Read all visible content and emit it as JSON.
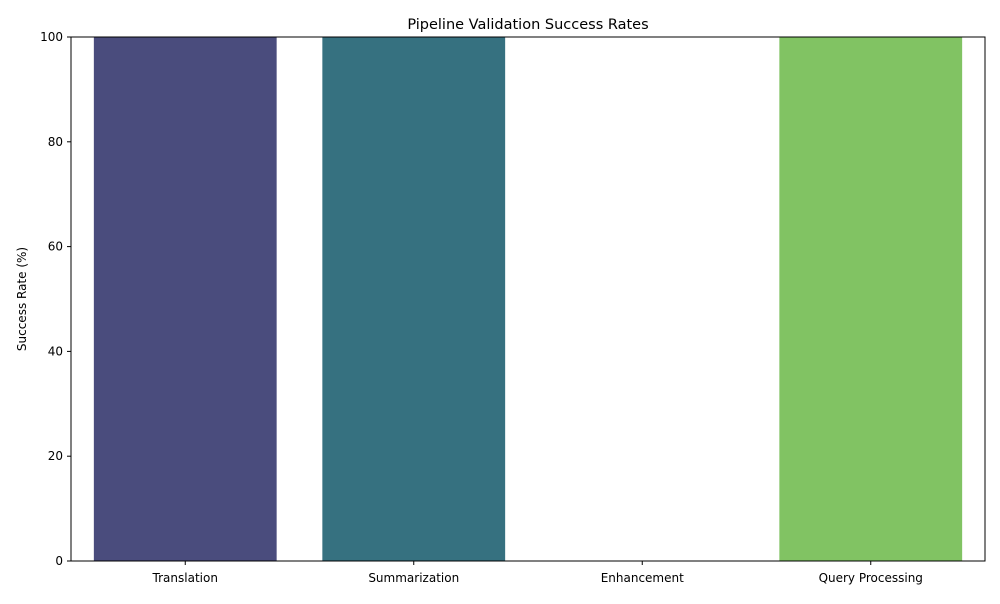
{
  "chart_data": {
    "type": "bar",
    "title": "Pipeline Validation Success Rates",
    "xlabel": "",
    "ylabel": "Success Rate (%)",
    "categories": [
      "Translation",
      "Summarization",
      "Enhancement",
      "Query Processing"
    ],
    "values": [
      100,
      100,
      0,
      100
    ],
    "colors": [
      "#4a4c7d",
      "#367180",
      "#2ea384",
      "#81c363"
    ],
    "ylim": [
      0,
      100
    ],
    "yticks": [
      0,
      20,
      40,
      60,
      80,
      100
    ],
    "grid": false,
    "legend": "none"
  }
}
